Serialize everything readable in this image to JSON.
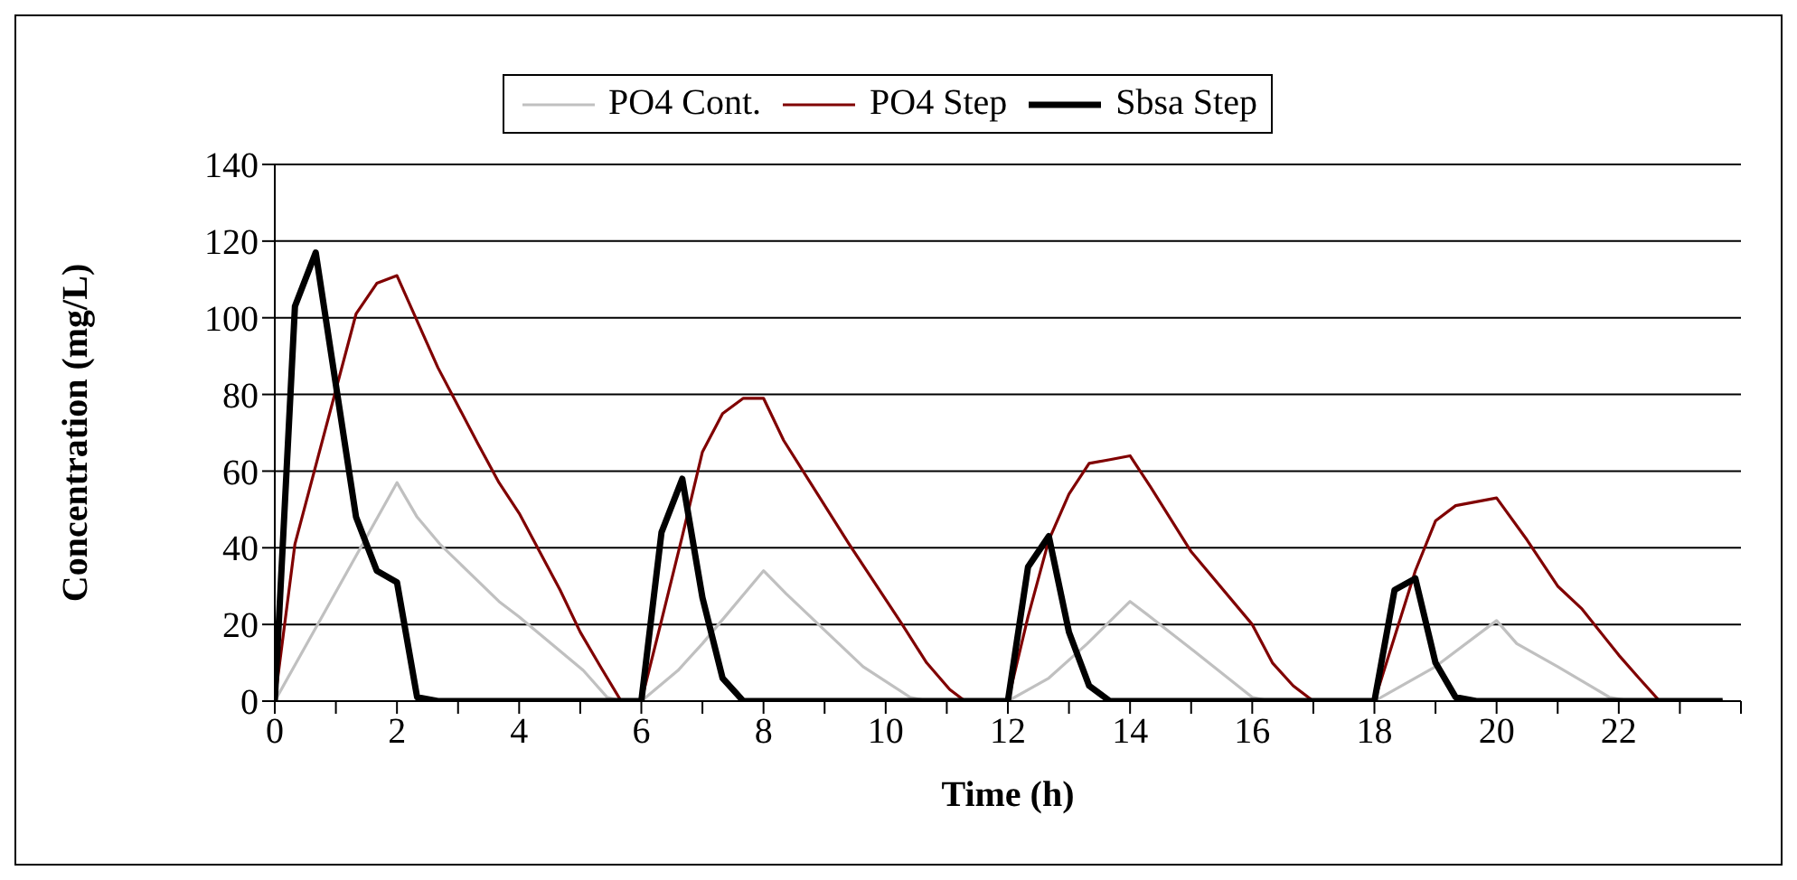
{
  "chart_data": {
    "type": "line",
    "xlabel": "Time (h)",
    "ylabel": "Concentration (mg/L)",
    "xlim": [
      0,
      24
    ],
    "xticks": [
      0,
      {
        "value": 1,
        "label": null
      },
      2,
      {
        "value": 3,
        "label": null
      },
      4,
      {
        "value": 5,
        "label": null
      },
      6,
      {
        "value": 7,
        "label": null
      },
      8,
      {
        "value": 9,
        "label": null
      },
      10,
      {
        "value": 11,
        "label": null
      },
      12,
      {
        "value": 13,
        "label": null
      },
      14,
      {
        "value": 15,
        "label": null
      },
      16,
      {
        "value": 17,
        "label": null
      },
      18,
      {
        "value": 19,
        "label": null
      },
      20,
      {
        "value": 21,
        "label": null
      },
      22,
      {
        "value": 23,
        "label": null
      },
      {
        "value": 24,
        "label": null
      }
    ],
    "ylim": [
      0,
      140
    ],
    "yticks": [
      0,
      20,
      40,
      60,
      80,
      100,
      120,
      140
    ],
    "grid": "y",
    "legend": "top",
    "marker": "none",
    "line_style": "solid",
    "series": [
      {
        "name": "PO4 Cont.",
        "color": "#c0c0c0",
        "x": [
          0,
          2,
          2.33,
          2.7,
          3.67,
          4,
          5.05,
          5.44,
          5.7,
          6,
          6.6,
          7,
          8,
          8.37,
          9.63,
          10.4,
          10.7,
          12,
          12.67,
          13.3,
          14,
          14.33,
          15.05,
          16,
          16.3,
          18,
          19,
          20,
          20.33,
          21,
          21.85,
          22.2,
          23.7
        ],
        "values": [
          0,
          57,
          48,
          41,
          26,
          22,
          8,
          1,
          0,
          0,
          8,
          15,
          34,
          28,
          9,
          1,
          0,
          0,
          6,
          15,
          26,
          22,
          13,
          1,
          0,
          0,
          9,
          21,
          15,
          9,
          1,
          0,
          0
        ]
      },
      {
        "name": "PO4 Step",
        "color": "#800000",
        "x": [
          0,
          0.33,
          1.33,
          1.67,
          2,
          2.67,
          3.33,
          3.67,
          4,
          4.67,
          5,
          5.33,
          5.67,
          6,
          6.33,
          6.67,
          7,
          7.33,
          7.67,
          8,
          8.33,
          9.4,
          10.27,
          10.67,
          11.05,
          11.3,
          12,
          12.33,
          12.67,
          13,
          13.33,
          13.67,
          14,
          14.33,
          15,
          16,
          16.33,
          16.67,
          17,
          18,
          18.67,
          19,
          19.33,
          20,
          20.5,
          21,
          21.4,
          22,
          22.33,
          22.67,
          23.7
        ],
        "values": [
          0,
          41,
          101,
          109,
          111,
          87,
          67,
          57,
          49,
          29,
          18,
          9,
          0,
          0,
          21,
          43,
          65,
          75,
          79,
          79,
          68,
          41,
          20,
          10,
          3,
          0,
          0,
          22,
          42,
          54,
          62,
          63,
          64,
          56,
          39,
          20,
          10,
          4,
          0,
          0,
          34,
          47,
          51,
          53,
          42,
          30,
          24,
          12,
          6,
          0,
          0
        ]
      },
      {
        "name": "Sbsa Step",
        "color": "#000000",
        "x": [
          0,
          0.33,
          0.67,
          1.33,
          1.67,
          2,
          2.33,
          2.67,
          6,
          6.33,
          6.67,
          7,
          7.33,
          7.67,
          12,
          12.33,
          12.67,
          13,
          13.33,
          13.67,
          18,
          18.33,
          18.67,
          19,
          19.33,
          19.67,
          23.7
        ],
        "values": [
          0,
          103,
          117,
          48,
          34,
          31,
          1,
          0,
          0,
          44,
          58,
          27,
          6,
          0,
          0,
          35,
          43,
          18,
          4,
          0,
          0,
          29,
          32,
          10,
          1,
          0,
          0
        ]
      }
    ]
  }
}
